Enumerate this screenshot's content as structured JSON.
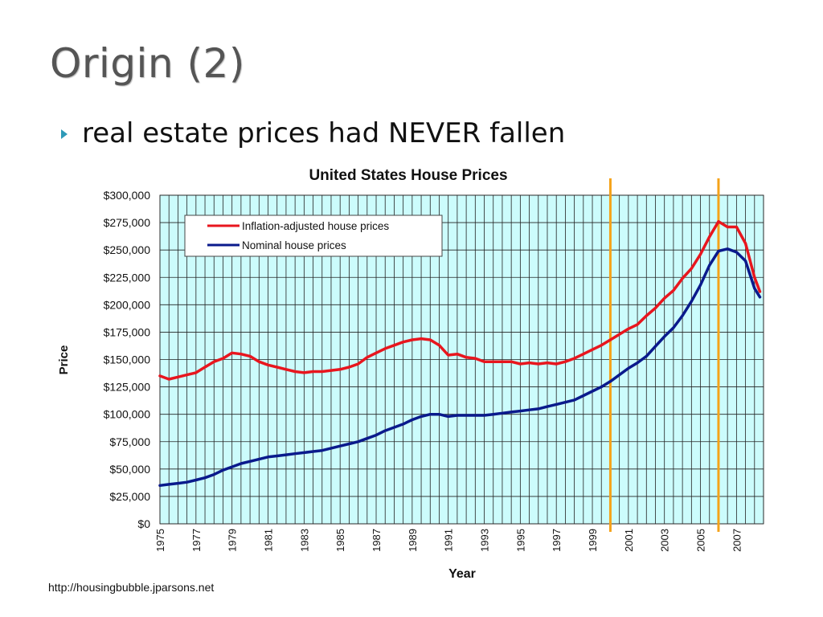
{
  "slide": {
    "title": "Origin (2)",
    "bullet": "real estate prices had NEVER fallen",
    "source": "http://housingbubble.jparsons.net"
  },
  "chart_data": {
    "type": "line",
    "title": "United States House Prices",
    "xlabel": "Year",
    "ylabel": "Price",
    "xlim": [
      1975,
      2008.5
    ],
    "ylim": [
      0,
      300000
    ],
    "x_tick_labels": [
      "1975",
      "1977",
      "1979",
      "1981",
      "1983",
      "1985",
      "1987",
      "1989",
      "1991",
      "1993",
      "1995",
      "1997",
      "1999",
      "2001",
      "2003",
      "2005",
      "2007"
    ],
    "y_tick_labels": [
      "$0",
      "$25,000",
      "$50,000",
      "$75,000",
      "$100,000",
      "$125,000",
      "$150,000",
      "$175,000",
      "$200,000",
      "$225,000",
      "$250,000",
      "$275,000",
      "$300,000"
    ],
    "grid": true,
    "plot_background": "#ccfcfc",
    "legend_position": "top-left",
    "vertical_markers": [
      {
        "x": 2000,
        "color": "#f5a31a"
      },
      {
        "x": 2006,
        "color": "#f5a31a"
      }
    ],
    "series": [
      {
        "name": "Inflation-adjusted house prices",
        "color": "#e8161e",
        "x": [
          1975,
          1975.5,
          1976,
          1976.5,
          1977,
          1977.5,
          1978,
          1978.5,
          1979,
          1979.5,
          1980,
          1980.5,
          1981,
          1981.5,
          1982,
          1982.5,
          1983,
          1983.5,
          1984,
          1984.5,
          1985,
          1985.5,
          1986,
          1986.5,
          1987,
          1987.5,
          1988,
          1988.5,
          1989,
          1989.5,
          1990,
          1990.5,
          1991,
          1991.5,
          1992,
          1992.5,
          1993,
          1993.5,
          1994,
          1994.5,
          1995,
          1995.5,
          1996,
          1996.5,
          1997,
          1997.5,
          1998,
          1998.5,
          1999,
          1999.5,
          2000,
          2000.5,
          2001,
          2001.5,
          2002,
          2002.5,
          2003,
          2003.5,
          2004,
          2004.5,
          2005,
          2005.5,
          2006,
          2006.5,
          2007,
          2007.5,
          2008,
          2008.3
        ],
        "values": [
          135000,
          132000,
          134000,
          136000,
          138000,
          143000,
          148000,
          151000,
          156000,
          155000,
          153000,
          148000,
          145000,
          143000,
          141000,
          139000,
          138000,
          139000,
          139000,
          140000,
          141000,
          143000,
          146000,
          152000,
          156000,
          160000,
          163000,
          166000,
          168000,
          169000,
          168000,
          163000,
          154000,
          155000,
          152000,
          151000,
          148000,
          148000,
          148000,
          148000,
          146000,
          147000,
          146000,
          147000,
          146000,
          148000,
          151000,
          155000,
          159000,
          163000,
          168000,
          173000,
          178000,
          182000,
          190000,
          197000,
          206000,
          213000,
          224000,
          233000,
          246000,
          262000,
          276000,
          271000,
          271000,
          256000,
          225000,
          212000
        ]
      },
      {
        "name": "Nominal house prices",
        "color": "#0a1a8c",
        "x": [
          1975,
          1975.5,
          1976,
          1976.5,
          1977,
          1977.5,
          1978,
          1978.5,
          1979,
          1979.5,
          1980,
          1980.5,
          1981,
          1981.5,
          1982,
          1982.5,
          1983,
          1983.5,
          1984,
          1984.5,
          1985,
          1985.5,
          1986,
          1986.5,
          1987,
          1987.5,
          1988,
          1988.5,
          1989,
          1989.5,
          1990,
          1990.5,
          1991,
          1991.5,
          1992,
          1992.5,
          1993,
          1993.5,
          1994,
          1994.5,
          1995,
          1995.5,
          1996,
          1996.5,
          1997,
          1997.5,
          1998,
          1998.5,
          1999,
          1999.5,
          2000,
          2000.5,
          2001,
          2001.5,
          2002,
          2002.5,
          2003,
          2003.5,
          2004,
          2004.5,
          2005,
          2005.5,
          2006,
          2006.5,
          2007,
          2007.5,
          2008,
          2008.3
        ],
        "values": [
          35000,
          36000,
          37000,
          38000,
          40000,
          42000,
          45000,
          49000,
          52000,
          55000,
          57000,
          59000,
          61000,
          62000,
          63000,
          64000,
          65000,
          66000,
          67000,
          69000,
          71000,
          73000,
          75000,
          78000,
          81000,
          85000,
          88000,
          91000,
          95000,
          98000,
          100000,
          100000,
          98000,
          99000,
          99000,
          99000,
          99000,
          100000,
          101000,
          102000,
          103000,
          104000,
          105000,
          107000,
          109000,
          111000,
          113000,
          117000,
          121000,
          125000,
          130000,
          136000,
          142000,
          147000,
          153000,
          162000,
          171000,
          179000,
          190000,
          203000,
          218000,
          236000,
          249000,
          251000,
          248000,
          240000,
          215000,
          207000
        ]
      }
    ]
  }
}
